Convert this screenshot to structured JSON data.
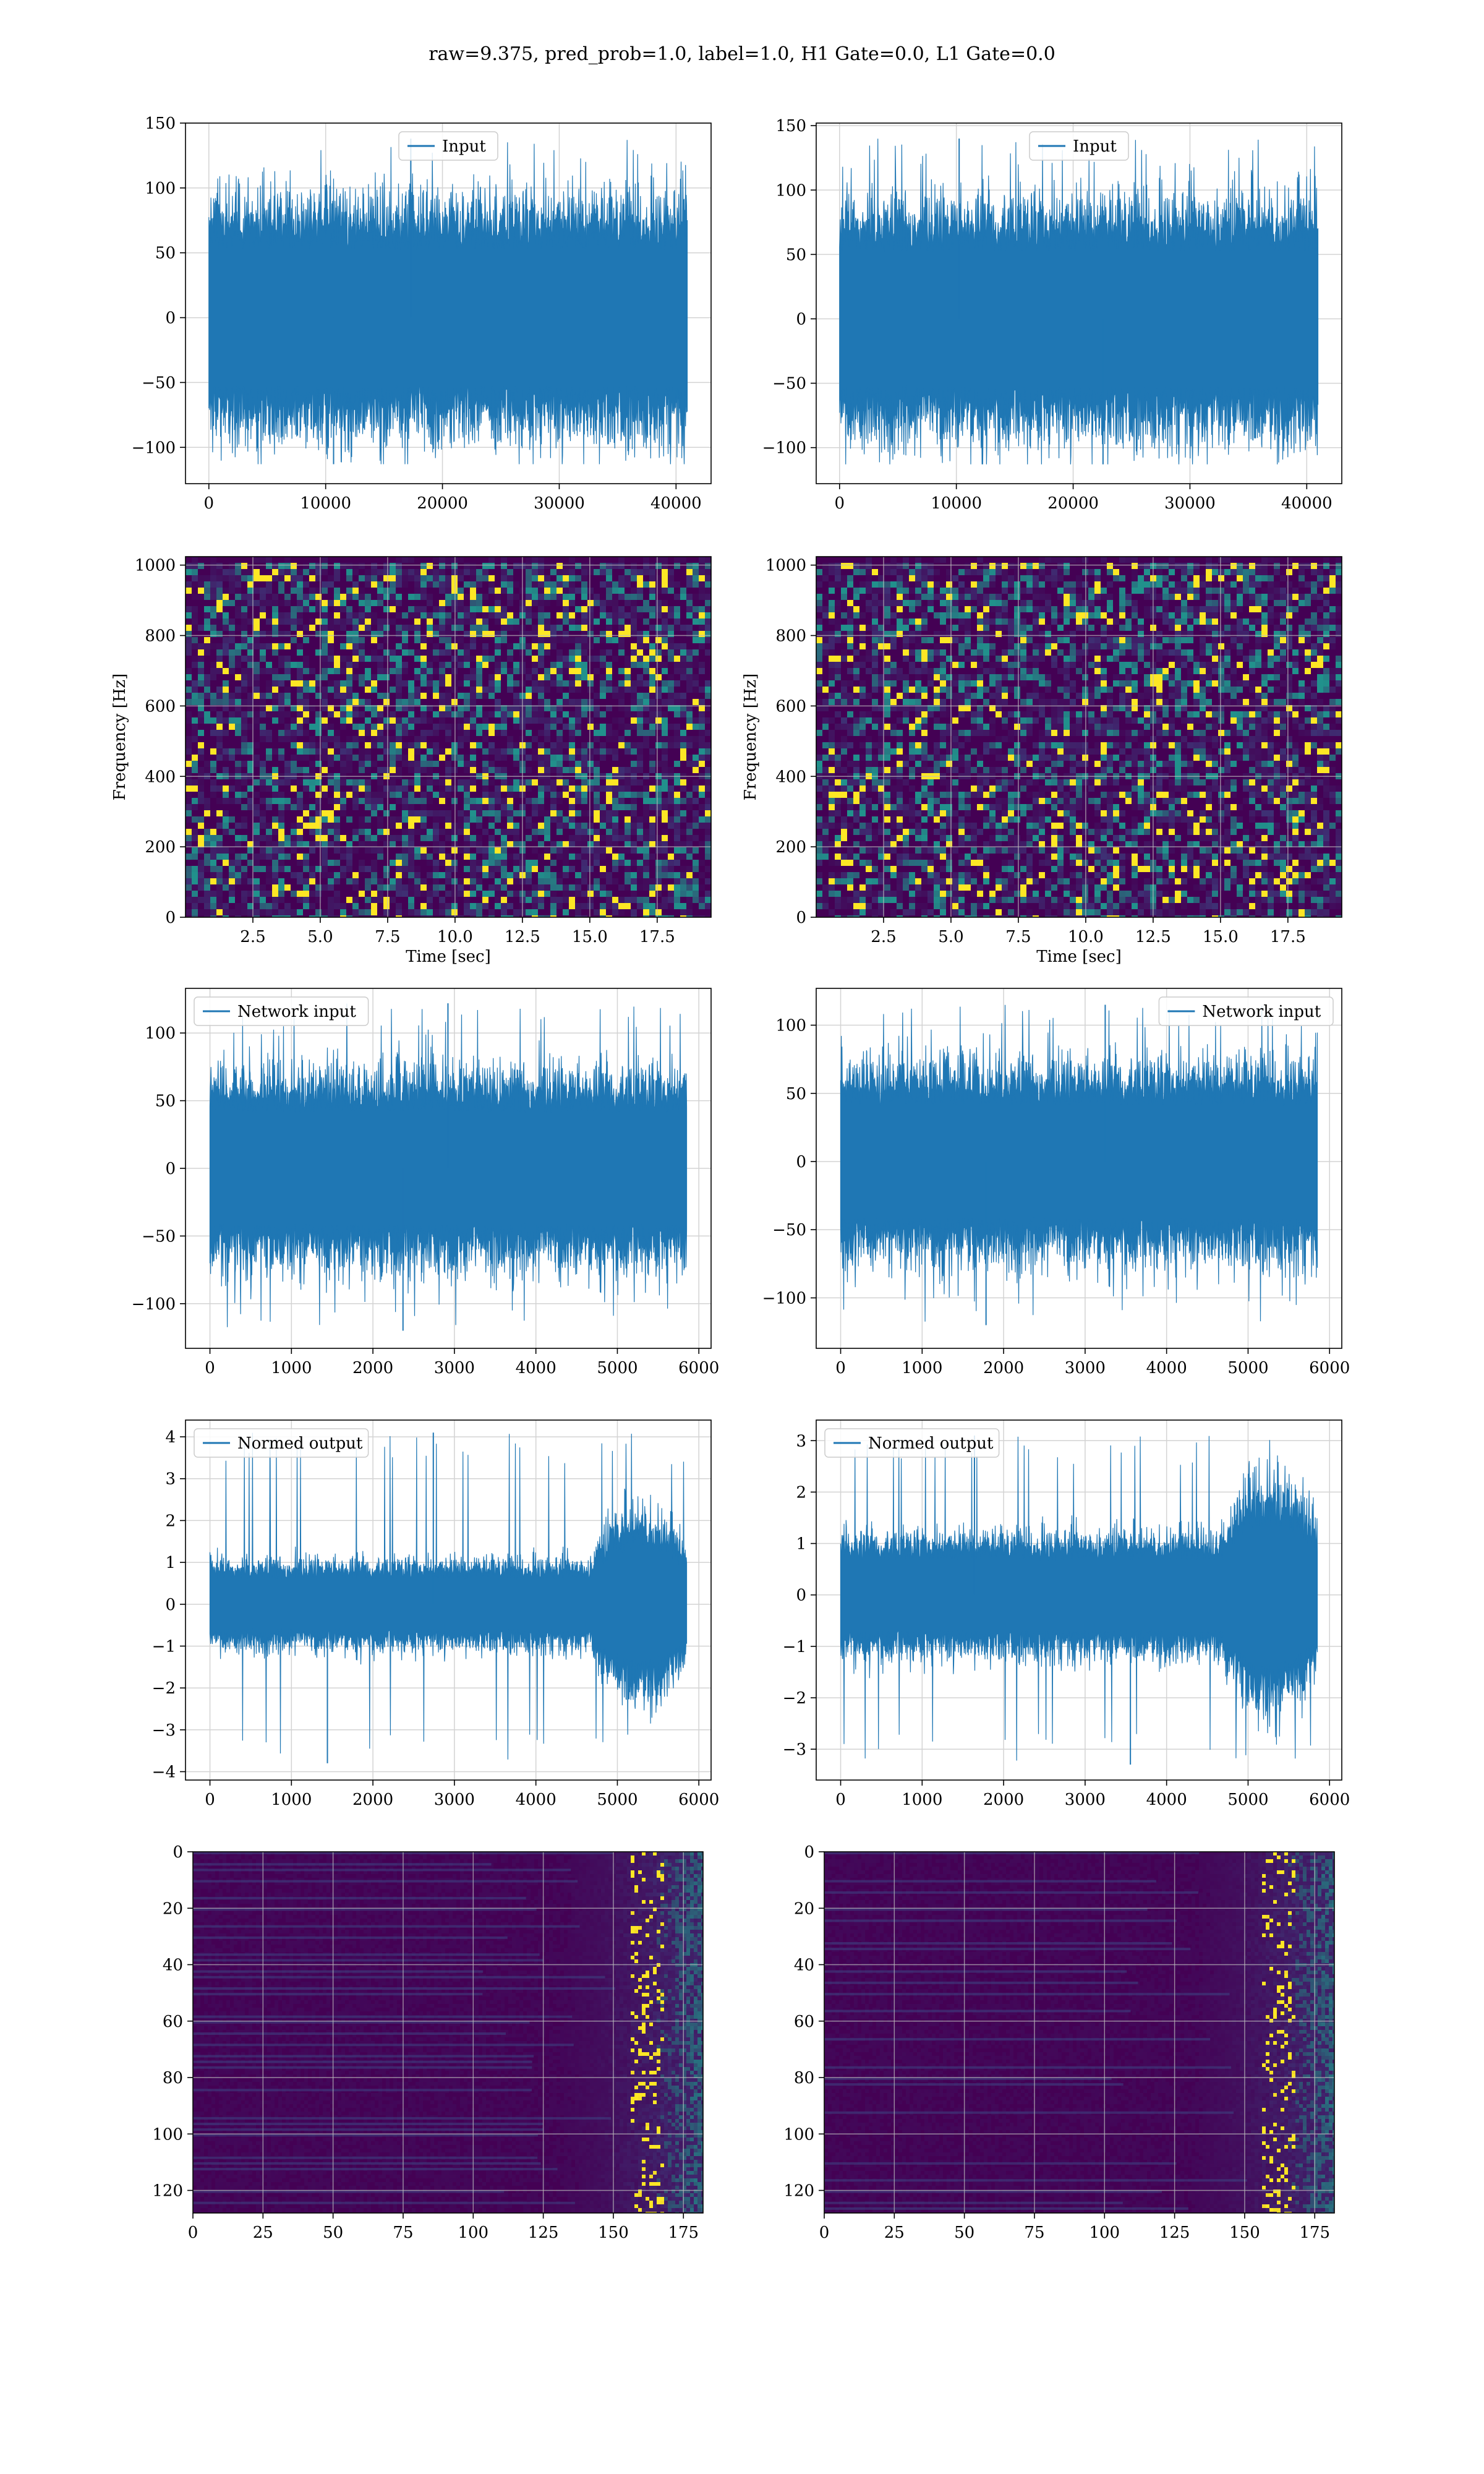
{
  "figure": {
    "suptitle": "raw=9.375, pred_prob=1.0, label=1.0, H1 Gate=0.0, L1 Gate=0.0"
  },
  "colors": {
    "line": "#1f77b4",
    "grid": "#d3d3d3",
    "viridis_low": "#440154",
    "viridis_mid": "#21918c",
    "viridis_high": "#fde725"
  },
  "chart_data": [
    {
      "id": "input_left",
      "type": "line",
      "ylabel": "",
      "xlabel": "",
      "legend": "Input",
      "legend_loc": "upper center",
      "xlim": [
        -2000,
        43000
      ],
      "ylim": [
        -128,
        150
      ],
      "xticks": [
        0,
        10000,
        20000,
        30000,
        40000
      ],
      "yticks": [
        -100,
        -50,
        0,
        50,
        100,
        150
      ],
      "x_range": [
        0,
        40960
      ],
      "band": [
        -70,
        70
      ],
      "peak_max": 138,
      "peak_min": -113
    },
    {
      "id": "input_right",
      "type": "line",
      "ylabel": "",
      "xlabel": "",
      "legend": "Input",
      "legend_loc": "upper center",
      "xlim": [
        -2000,
        43000
      ],
      "ylim": [
        -128,
        152
      ],
      "xticks": [
        0,
        10000,
        20000,
        30000,
        40000
      ],
      "yticks": [
        -100,
        -50,
        0,
        50,
        100,
        150
      ],
      "x_range": [
        0,
        40960
      ],
      "band": [
        -70,
        70
      ],
      "peak_max": 140,
      "peak_min": -113
    },
    {
      "id": "spectrogram_left",
      "type": "heatmap",
      "xlabel": "Time [sec]",
      "ylabel": "Frequency [Hz]",
      "xlim": [
        0,
        19.5
      ],
      "ylim": [
        0,
        1024
      ],
      "xticks": [
        2.5,
        5.0,
        7.5,
        10.0,
        12.5,
        15.0,
        17.5
      ],
      "yticks": [
        0,
        200,
        400,
        600,
        800,
        1000
      ],
      "y_inverted": false
    },
    {
      "id": "spectrogram_right",
      "type": "heatmap",
      "xlabel": "Time [sec]",
      "ylabel": "Frequency [Hz]",
      "xlim": [
        0,
        19.5
      ],
      "ylim": [
        0,
        1024
      ],
      "xticks": [
        2.5,
        5.0,
        7.5,
        10.0,
        12.5,
        15.0,
        17.5
      ],
      "yticks": [
        0,
        200,
        400,
        600,
        800,
        1000
      ],
      "y_inverted": false
    },
    {
      "id": "network_input_left",
      "type": "line",
      "ylabel": "",
      "xlabel": "",
      "legend": "Network input",
      "legend_loc": "upper left",
      "xlim": [
        -300,
        6150
      ],
      "ylim": [
        -133,
        133
      ],
      "xticks": [
        0,
        1000,
        2000,
        3000,
        4000,
        5000,
        6000
      ],
      "yticks": [
        -100,
        -50,
        0,
        50,
        100
      ],
      "x_range": [
        0,
        5850
      ],
      "band": [
        -55,
        55
      ],
      "peak_max": 122,
      "peak_min": -120
    },
    {
      "id": "network_input_right",
      "type": "line",
      "ylabel": "",
      "xlabel": "",
      "legend": "Network input",
      "legend_loc": "upper right",
      "xlim": [
        -300,
        6150
      ],
      "ylim": [
        -137,
        127
      ],
      "xticks": [
        0,
        1000,
        2000,
        3000,
        4000,
        5000,
        6000
      ],
      "yticks": [
        -100,
        -50,
        0,
        50,
        100
      ],
      "x_range": [
        0,
        5850
      ],
      "band": [
        -55,
        55
      ],
      "peak_max": 115,
      "peak_min": -120
    },
    {
      "id": "normed_output_left",
      "type": "line",
      "ylabel": "",
      "xlabel": "",
      "legend": "Normed output",
      "legend_loc": "upper left",
      "xlim": [
        -300,
        6150
      ],
      "ylim": [
        -4.2,
        4.4
      ],
      "xticks": [
        0,
        1000,
        2000,
        3000,
        4000,
        5000,
        6000
      ],
      "yticks": [
        -4,
        -3,
        -2,
        -1,
        0,
        1,
        2,
        3,
        4
      ],
      "x_range": [
        0,
        5850
      ],
      "band": [
        -0.8,
        0.8
      ],
      "burst": [
        4700,
        5850,
        2.2
      ],
      "peak_max": 4.1,
      "peak_min": -3.8
    },
    {
      "id": "normed_output_right",
      "type": "line",
      "ylabel": "",
      "xlabel": "",
      "legend": "Normed output",
      "legend_loc": "upper left",
      "xlim": [
        -300,
        6150
      ],
      "ylim": [
        -3.6,
        3.4
      ],
      "xticks": [
        0,
        1000,
        2000,
        3000,
        4000,
        5000,
        6000
      ],
      "yticks": [
        -3,
        -2,
        -1,
        0,
        1,
        2,
        3
      ],
      "x_range": [
        0,
        5850
      ],
      "band": [
        -0.9,
        0.9
      ],
      "burst": [
        4700,
        5850,
        2.0
      ],
      "peak_max": 3.1,
      "peak_min": -3.3
    },
    {
      "id": "feature_map_left",
      "type": "heatmap",
      "xlabel": "",
      "ylabel": "",
      "xlim": [
        0,
        182
      ],
      "ylim": [
        0,
        128
      ],
      "xticks": [
        0,
        25,
        50,
        75,
        100,
        125,
        150,
        175
      ],
      "yticks": [
        0,
        20,
        40,
        60,
        80,
        100,
        120
      ],
      "y_inverted": true
    },
    {
      "id": "feature_map_right",
      "type": "heatmap",
      "xlabel": "",
      "ylabel": "",
      "xlim": [
        0,
        182
      ],
      "ylim": [
        0,
        128
      ],
      "xticks": [
        0,
        25,
        50,
        75,
        100,
        125,
        150,
        175
      ],
      "yticks": [
        0,
        20,
        40,
        60,
        80,
        100,
        120
      ],
      "y_inverted": true
    }
  ]
}
